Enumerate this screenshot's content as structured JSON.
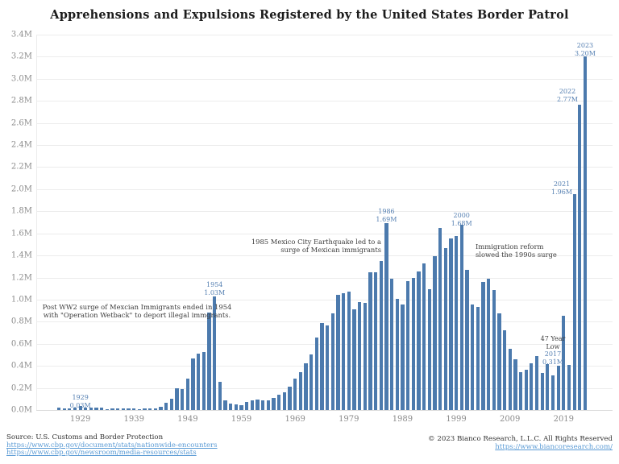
{
  "title": "Apprehensions and Expulsions Registered by the United States Border Patrol",
  "chart_data": {
    "type": "bar",
    "x_start": 1925,
    "x_end": 2023,
    "x_step": 1,
    "values_millions": [
      0.022,
      0.013,
      0.016,
      0.024,
      0.033,
      0.021,
      0.022,
      0.023,
      0.021,
      0.01,
      0.011,
      0.012,
      0.013,
      0.013,
      0.012,
      0.01,
      0.011,
      0.012,
      0.011,
      0.031,
      0.069,
      0.1,
      0.194,
      0.193,
      0.288,
      0.468,
      0.509,
      0.529,
      0.886,
      1.028,
      0.254,
      0.088,
      0.06,
      0.053,
      0.045,
      0.071,
      0.089,
      0.093,
      0.089,
      0.087,
      0.11,
      0.139,
      0.162,
      0.212,
      0.284,
      0.345,
      0.42,
      0.506,
      0.656,
      0.788,
      0.767,
      0.876,
      1.042,
      1.058,
      1.076,
      0.91,
      0.976,
      0.97,
      1.251,
      1.247,
      1.349,
      1.693,
      1.19,
      1.008,
      0.954,
      1.17,
      1.198,
      1.258,
      1.327,
      1.095,
      1.395,
      1.65,
      1.469,
      1.556,
      1.579,
      1.676,
      1.266,
      0.955,
      0.932,
      1.16,
      1.189,
      1.089,
      0.877,
      0.724,
      0.556,
      0.463,
      0.34,
      0.365,
      0.421,
      0.487,
      0.337,
      0.416,
      0.311,
      0.404,
      0.852,
      0.41,
      1.957,
      2.767,
      3.201
    ],
    "ylim": [
      0,
      3.4
    ],
    "y_ticks": [
      "0.0M",
      "0.2M",
      "0.4M",
      "0.6M",
      "0.8M",
      "1.0M",
      "1.2M",
      "1.4M",
      "1.6M",
      "1.8M",
      "2.0M",
      "2.2M",
      "2.4M",
      "2.6M",
      "2.8M",
      "3.0M",
      "3.2M",
      "3.4M"
    ],
    "x_ticks": [
      "1929",
      "1939",
      "1949",
      "1959",
      "1969",
      "1979",
      "1989",
      "1999",
      "2009",
      "2019"
    ],
    "grid": "horizontal",
    "legend": "none",
    "bar_color": "#4c7aad",
    "callout_color": "#5680b2",
    "callouts": [
      {
        "year": 1929,
        "lines": [
          "1929",
          "0.03M"
        ]
      },
      {
        "year": 1954,
        "lines": [
          "1954",
          "1.03M"
        ]
      },
      {
        "year": 1986,
        "lines": [
          "1986",
          "1.69M"
        ]
      },
      {
        "year": 2000,
        "lines": [
          "2000",
          "1.68M"
        ]
      },
      {
        "year": 2017,
        "note_lines": [
          "47 Year",
          "Low"
        ],
        "lines": [
          "2017",
          "0.31M"
        ]
      },
      {
        "year": 2021,
        "lines": [
          "2021",
          "1.96M"
        ]
      },
      {
        "year": 2022,
        "lines": [
          "2022",
          "2.77M"
        ]
      },
      {
        "year": 2023,
        "lines": [
          "2023",
          "3.20M"
        ]
      }
    ],
    "annotations": [
      {
        "id": "ww2",
        "lines": [
          "Post WW2 surge of Mexcian Immigrants ended in 1954",
          "with \"Operation Wetback\" to deport illegal immgrants."
        ]
      },
      {
        "id": "earthquake",
        "lines": [
          "1985 Mexico City Earthquake led to a",
          "surge of Mexican immigrants"
        ]
      },
      {
        "id": "reform",
        "lines": [
          "Immigration reform",
          "slowed the 1990s surge"
        ]
      }
    ]
  },
  "footer": {
    "source": "Source: U.S. Customs and Border Protection",
    "link1": "https://www.cbp.gov/document/stats/nationwide-encounters",
    "link2": "https://www.cbp.gov/newsroom/media-resources/stats",
    "copyright": "© 2023 Bianco Research, L.L.C. All Rights Reserved",
    "link3": "https://www.biancoresearch.com/"
  }
}
